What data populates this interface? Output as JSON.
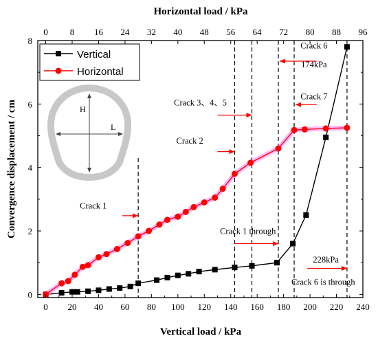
{
  "chart_data": {
    "type": "line",
    "title": "",
    "xlabel": "Vertical load / kPa",
    "x2label": "Horizontal load / kPa",
    "ylabel": "Convergence displacement / cm",
    "xlim": [
      -6,
      240
    ],
    "x2lim": [
      -2.4,
      96
    ],
    "ylim": [
      -0.1,
      8
    ],
    "x_ticks": [
      0,
      20,
      40,
      60,
      80,
      100,
      120,
      140,
      160,
      180,
      200,
      220,
      240
    ],
    "x2_ticks": [
      0,
      8,
      16,
      24,
      32,
      40,
      48,
      56,
      64,
      72,
      80,
      88,
      96
    ],
    "y_ticks": [
      0,
      2,
      4,
      6,
      8
    ],
    "legend_position": "top-left",
    "series": [
      {
        "name": "Vertical",
        "color": "#000000",
        "marker": "square",
        "x": [
          0,
          12,
          20,
          24,
          32,
          40,
          48,
          56,
          64,
          70,
          84,
          92,
          100,
          108,
          116,
          128,
          143,
          156,
          175,
          187,
          197,
          212,
          228
        ],
        "y": [
          0,
          0.05,
          0.08,
          0.08,
          0.1,
          0.13,
          0.17,
          0.2,
          0.25,
          0.35,
          0.45,
          0.53,
          0.6,
          0.65,
          0.72,
          0.78,
          0.85,
          0.9,
          1.0,
          1.6,
          2.5,
          4.95,
          7.8
        ]
      },
      {
        "name": "Horizontal",
        "color": "#ff0000",
        "marker": "circle",
        "x": [
          0,
          12,
          17,
          22,
          28,
          32,
          40,
          46,
          54,
          62,
          70,
          78,
          86,
          92,
          100,
          106,
          112,
          120,
          128,
          134,
          143,
          155,
          176,
          188,
          196,
          212,
          228
        ],
        "y": [
          0,
          0.35,
          0.42,
          0.62,
          0.87,
          0.92,
          1.17,
          1.27,
          1.43,
          1.62,
          1.83,
          2.0,
          2.2,
          2.35,
          2.45,
          2.6,
          2.75,
          2.9,
          3.05,
          3.33,
          3.8,
          4.15,
          4.6,
          5.18,
          5.2,
          5.23,
          5.25
        ]
      }
    ],
    "vlines": [
      70,
      143,
      156,
      176,
      188,
      228
    ],
    "annotations": [
      {
        "text": "Crack 1",
        "x": 36,
        "y": 2.7
      },
      {
        "text": "Crack 2",
        "x": 109,
        "y": 4.75
      },
      {
        "text": "Crack 3、4、5",
        "x": 117,
        "y": 5.95
      },
      {
        "text": "Crack 6",
        "x": 203,
        "y": 7.75
      },
      {
        "text": "174kPa",
        "x": 203,
        "y": 7.15
      },
      {
        "text": "Crack 7",
        "x": 203,
        "y": 6.15
      },
      {
        "text": "Crack 1 through",
        "x": 153,
        "y": 1.9
      },
      {
        "text": "228kPa",
        "x": 212,
        "y": 1.0
      },
      {
        "text": "Crack 6 is through",
        "x": 210,
        "y": 0.3
      }
    ],
    "arrows": [
      {
        "x": 58,
        "y": 2.48,
        "x2": 70,
        "y2": 2.48
      },
      {
        "x": 130,
        "y": 4.5,
        "x2": 143,
        "y2": 4.5
      },
      {
        "x": 130,
        "y": 5.65,
        "x2": 156,
        "y2": 5.65
      },
      {
        "x": 205,
        "y": 7.35,
        "x2": 177,
        "y2": 7.35
      },
      {
        "x": 205,
        "y": 5.98,
        "x2": 189,
        "y2": 5.98
      },
      {
        "x": 143,
        "y": 1.6,
        "x2": 176,
        "y2": 1.6
      },
      {
        "x": 198,
        "y": 0.82,
        "x2": 228,
        "y2": 0.82
      }
    ],
    "inset": {
      "label_h": "H",
      "label_l": "L"
    }
  }
}
